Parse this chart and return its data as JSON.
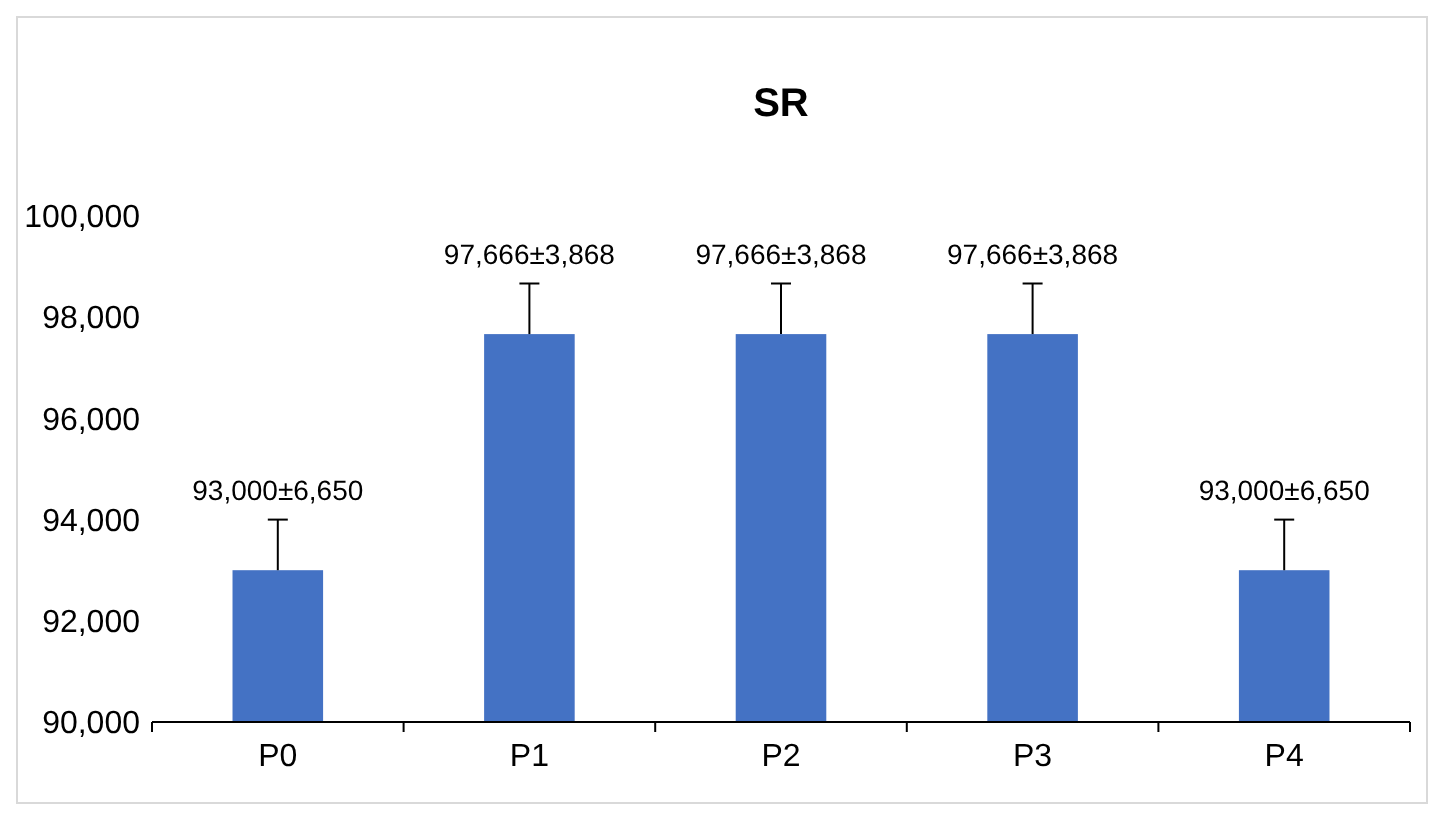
{
  "chart_data": {
    "type": "bar",
    "title": "SR",
    "categories": [
      "P0",
      "P1",
      "P2",
      "P3",
      "P4"
    ],
    "values": [
      93000,
      97666,
      97666,
      97666,
      93000
    ],
    "errors": [
      [
        93000,
        94000
      ],
      [
        97666,
        98666
      ],
      [
        97666,
        98666
      ],
      [
        97666,
        98666
      ],
      [
        93000,
        94000
      ]
    ],
    "value_labels": [
      "93,000±6,650",
      "97,666±3,868",
      "97,666±3,868",
      "97,666±3,868",
      "93,000±6,650"
    ],
    "color": "#4472c4",
    "ylim": [
      90000,
      100000
    ],
    "yticks": [
      {
        "value": 90000,
        "label": "90,000"
      },
      {
        "value": 92000,
        "label": "92,000"
      },
      {
        "value": 94000,
        "label": "94,000"
      },
      {
        "value": 96000,
        "label": "96,000"
      },
      {
        "value": 98000,
        "label": "98,000"
      },
      {
        "value": 100000,
        "label": "100,000"
      }
    ],
    "grid": false
  }
}
